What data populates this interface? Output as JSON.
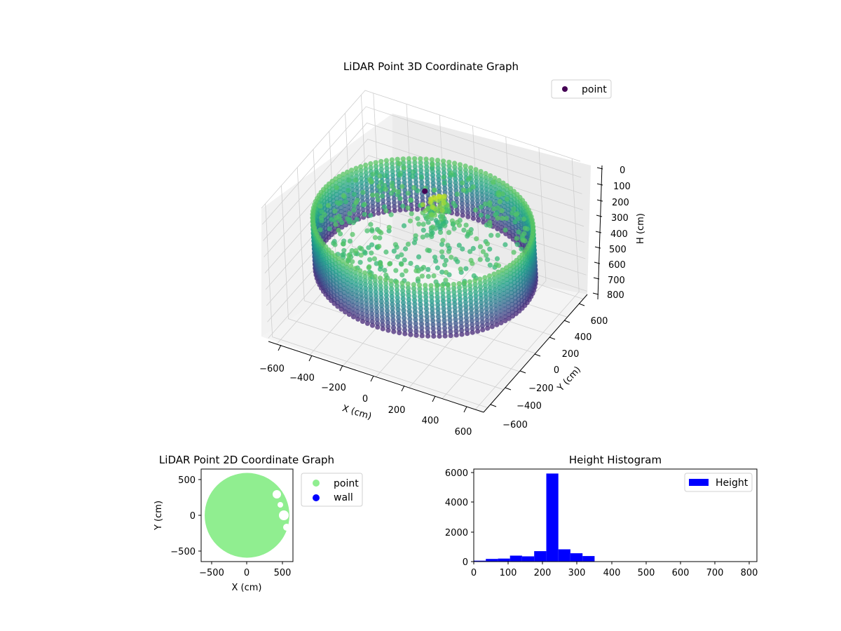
{
  "chart_data": [
    {
      "type": "scatter",
      "projection": "3d",
      "title": "LiDAR Point 3D Coordinate Graph",
      "xlabel": "X (cm)",
      "ylabel": "Y (cm)",
      "zlabel": "H (cm)",
      "xlim": [
        -650,
        650
      ],
      "ylim": [
        -650,
        650
      ],
      "zlim": [
        0,
        820
      ],
      "z_inverted": true,
      "x_ticks": [
        -600,
        -400,
        -200,
        0,
        200,
        400,
        600
      ],
      "y_ticks": [
        -600,
        -400,
        -200,
        0,
        200,
        400,
        600
      ],
      "z_ticks": [
        0,
        100,
        200,
        300,
        400,
        500,
        600,
        700,
        800
      ],
      "colormap": "viridis",
      "grid": true,
      "legend": {
        "position": "upper-right",
        "entries": [
          {
            "label": "point",
            "color": "#440154"
          }
        ]
      },
      "wall_radius": 600,
      "wall_height_range": [
        230,
        560
      ],
      "highlight_point": {
        "x": -40,
        "y": 120,
        "h": 120
      }
    },
    {
      "type": "scatter",
      "title": "LiDAR Point 2D Coordinate Graph",
      "xlabel": "X (cm)",
      "ylabel": "Y (cm)",
      "xlim": [
        -650,
        650
      ],
      "ylim": [
        -650,
        650
      ],
      "x_ticks": [
        -500,
        0,
        500
      ],
      "y_ticks": [
        -500,
        0,
        500
      ],
      "fill_radius": 600,
      "legend": {
        "position": "outside-right",
        "entries": [
          {
            "label": "point",
            "color": "#90ee90"
          },
          {
            "label": "wall",
            "color": "#0000ff"
          }
        ]
      }
    },
    {
      "type": "bar",
      "subtype": "histogram",
      "title": "Height Histogram",
      "xlim": [
        0,
        820
      ],
      "ylim": [
        0,
        6200
      ],
      "x_ticks": [
        0,
        100,
        200,
        300,
        400,
        500,
        600,
        700,
        800
      ],
      "y_ticks": [
        0,
        2000,
        4000,
        6000
      ],
      "color": "#0000ff",
      "legend": {
        "position": "upper-right",
        "entries": [
          {
            "label": "Height",
            "color": "#0000ff"
          }
        ]
      },
      "bin_edges": [
        0,
        35,
        70,
        105,
        140,
        175,
        210,
        245,
        280,
        315,
        350
      ],
      "values": [
        60,
        180,
        200,
        400,
        350,
        700,
        5900,
        820,
        560,
        370
      ]
    }
  ]
}
